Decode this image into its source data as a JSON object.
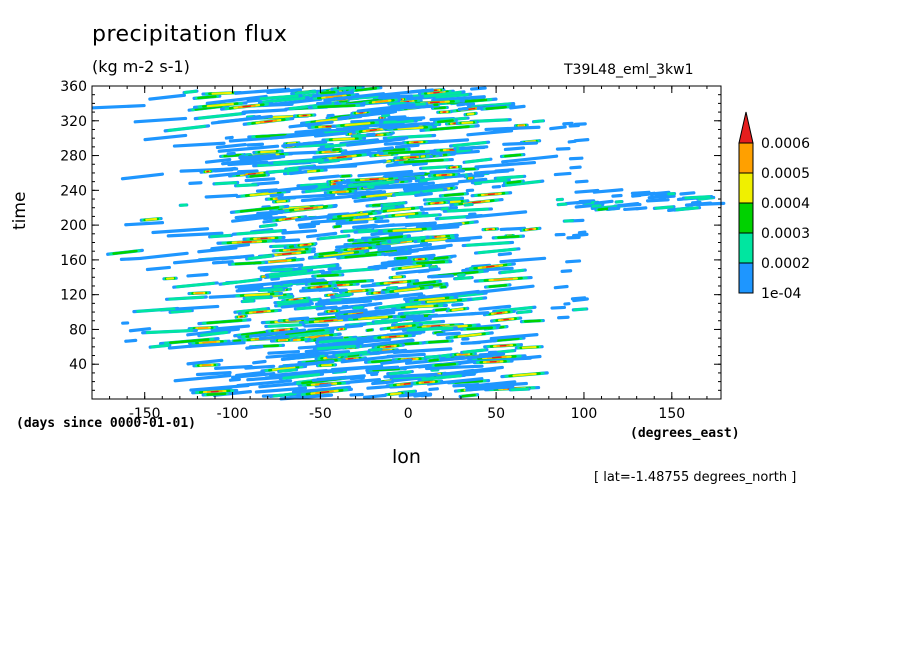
{
  "chart_data": {
    "type": "heatmap",
    "title": "precipitation flux",
    "units": "(kg m-2 s-1)",
    "run_id": "T39L48_eml_3kw1",
    "xlabel": "lon",
    "x_units": "(degrees_east)",
    "ylabel": "time",
    "y_units": "(days since 0000-01-01)",
    "annotation": "[ lat=-1.48755 degrees_north ]",
    "xlim": [
      -180,
      178
    ],
    "ylim": [
      0,
      360
    ],
    "x_ticks": [
      -150,
      -100,
      -50,
      0,
      50,
      100,
      150
    ],
    "x_tick_labels": [
      "-150",
      "-100",
      "-50",
      "0",
      "50",
      "100",
      "150"
    ],
    "y_ticks": [
      40,
      80,
      120,
      160,
      200,
      240,
      280,
      320,
      360
    ],
    "y_tick_labels": [
      "40",
      "80",
      "120",
      "160",
      "200",
      "240",
      "280",
      "320",
      "360"
    ],
    "colorbar": {
      "levels": [
        "1e-04",
        "0.0002",
        "0.0003",
        "0.0004",
        "0.0005",
        "0.0006"
      ],
      "level_values": [
        0.0001,
        0.0002,
        0.0003,
        0.0004,
        0.0005,
        0.0006
      ],
      "colors": [
        "#1e96ff",
        "#00e6a0",
        "#00d200",
        "#f0f000",
        "#ffa000",
        "#e61e1e"
      ],
      "extend": "max"
    },
    "grid": false,
    "field_description": "Eastward-propagating precipitation streaks between about -170 and 90 degrees_east for all 360 days; weak isolated streaks near 100 to 178 degrees_east around days 220-240."
  }
}
